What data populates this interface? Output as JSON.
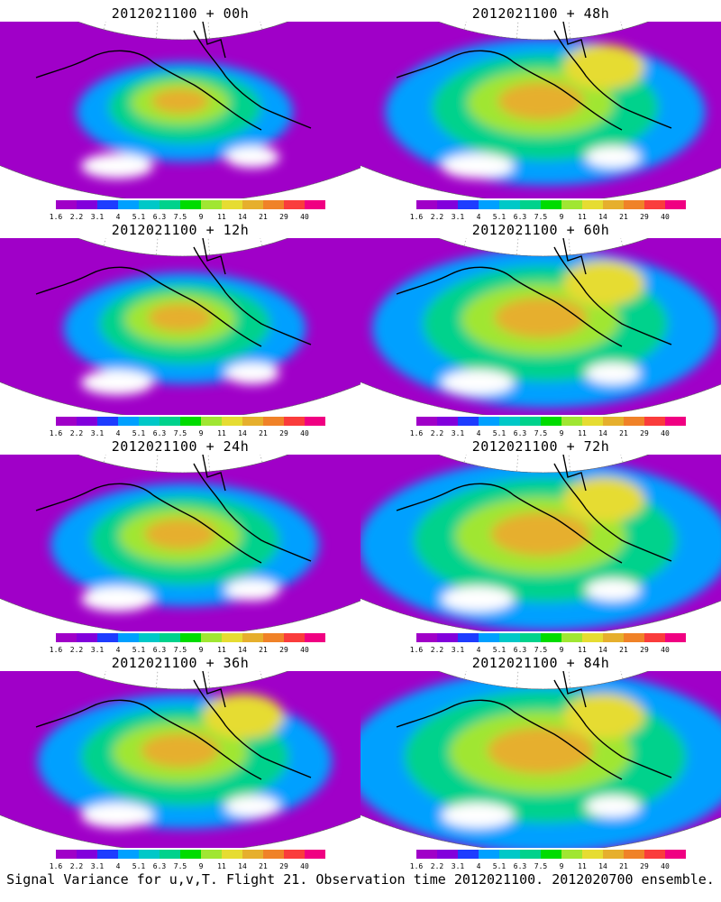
{
  "panels": [
    {
      "title": "2012021100 + 00h"
    },
    {
      "title": "2012021100 + 48h"
    },
    {
      "title": "2012021100 + 12h"
    },
    {
      "title": "2012021100 + 60h"
    },
    {
      "title": "2012021100 + 24h"
    },
    {
      "title": "2012021100 + 72h"
    },
    {
      "title": "2012021100 + 36h"
    },
    {
      "title": "2012021100 + 84h"
    }
  ],
  "colorbar": {
    "labels": [
      "1.6",
      "2.2",
      "3.1",
      "4",
      "5.1",
      "6.3",
      "7.5",
      "9",
      "11",
      "14",
      "21",
      "29",
      "40"
    ],
    "colors": [
      "#a000c8",
      "#8200dc",
      "#1e3cff",
      "#00a0ff",
      "#00c8c8",
      "#00d28c",
      "#00dc00",
      "#a0e632",
      "#e6dc32",
      "#e6af2d",
      "#f08228",
      "#fa3c3c",
      "#f00082"
    ]
  },
  "caption": "Signal Variance for u,v,T. Flight 21. Observation time 2012021100. 2012020700 ensemble."
}
